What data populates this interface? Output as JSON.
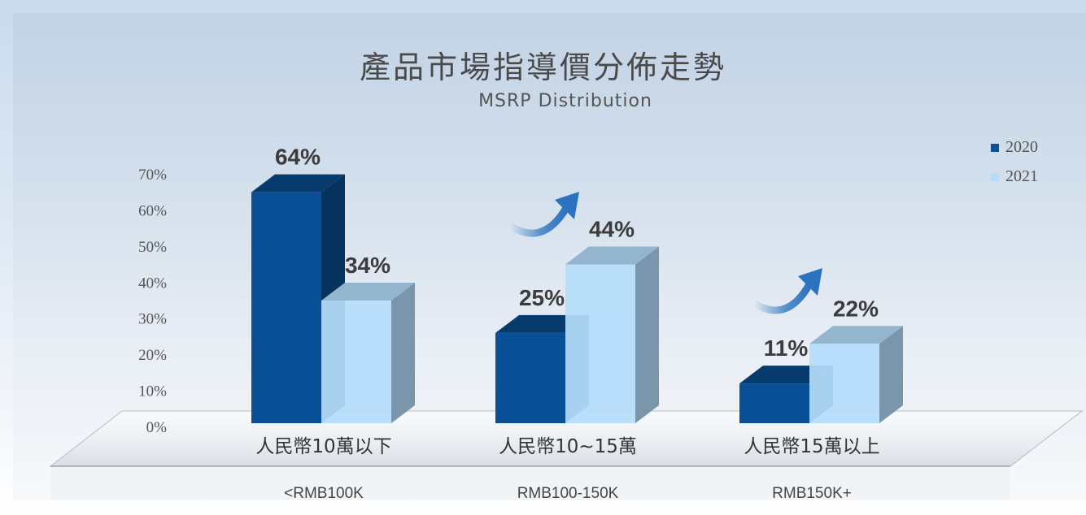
{
  "title": "產品市場指導價分佈走勢",
  "subtitle": "MSRP Distribution",
  "colors": {
    "series_2020": "#0a5097",
    "series_2021": "#b5ddfb",
    "arrow": "#2c73bf"
  },
  "chart_data": {
    "type": "bar",
    "title": "產品市場指導價分佈走勢",
    "subtitle": "MSRP Distribution",
    "categories": [
      "人民幣10萬以下",
      "人民幣10~15萬",
      "人民幣15萬以上"
    ],
    "category_sublabels": [
      "<RMB100K",
      "RMB100-150K",
      "RMB150K+"
    ],
    "series": [
      {
        "name": "2020",
        "values": [
          64,
          25,
          11
        ],
        "labels": [
          "64%",
          "25%",
          "11%"
        ]
      },
      {
        "name": "2021",
        "values": [
          34,
          44,
          22
        ],
        "labels": [
          "34%",
          "44%",
          "22%"
        ]
      }
    ],
    "y_ticks": [
      "0%",
      "10%",
      "20%",
      "30%",
      "40%",
      "50%",
      "60%",
      "70%"
    ],
    "ylim": [
      0,
      70
    ],
    "legend_position": "top-right",
    "grid": false,
    "annotations": [
      "up-arrow-category-2",
      "up-arrow-category-3"
    ]
  }
}
